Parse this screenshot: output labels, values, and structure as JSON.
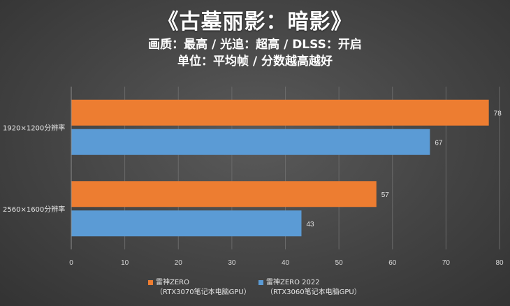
{
  "chart_data": {
    "type": "bar",
    "orientation": "horizontal",
    "title": "《古墓丽影：暗影》",
    "subtitle_lines": [
      "画质：最高 / 光追：超高 / DLSS：开启",
      "单位：平均帧 / 分数越高越好"
    ],
    "categories": [
      "1920×1200分辨率",
      "2560×1600分辨率"
    ],
    "series": [
      {
        "name": "雷神ZERO",
        "name_line2": "（RTX3070笔记本电脑GPU）",
        "color": "#ED7D31",
        "values": [
          78,
          57
        ]
      },
      {
        "name": "雷神ZERO 2022",
        "name_line2": "（RTX3060笔记本电脑GPU）",
        "color": "#5B9BD5",
        "values": [
          67,
          43
        ]
      }
    ],
    "xlim": [
      0,
      80
    ],
    "xticks": [
      "0",
      "10",
      "20",
      "30",
      "40",
      "50",
      "60",
      "70",
      "80"
    ],
    "grid": true,
    "legend_position": "bottom"
  }
}
